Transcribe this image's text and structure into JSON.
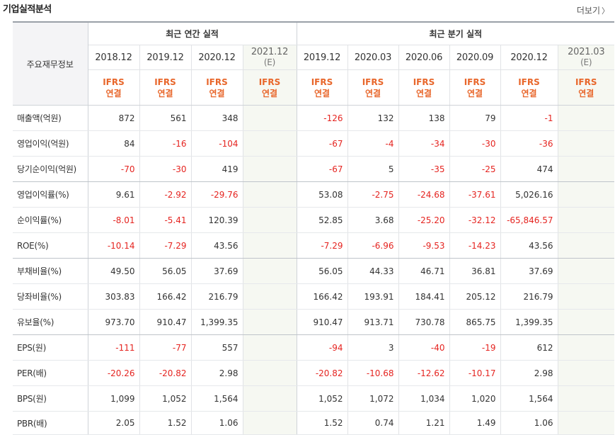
{
  "header": {
    "title": "기업실적분석",
    "more_label": "더보기",
    "more_icon": "chevron-right-icon"
  },
  "table": {
    "row_header_title": "주요재무정보",
    "groups": {
      "annual": "최근 연간 실적",
      "quarterly": "최근 분기 실적"
    },
    "annual_periods": [
      {
        "label": "2018.12",
        "estimate": false
      },
      {
        "label": "2019.12",
        "estimate": false
      },
      {
        "label": "2020.12",
        "estimate": false
      },
      {
        "label": "2021.12",
        "estimate": true,
        "estimate_mark": "(E)"
      }
    ],
    "quarter_periods": [
      {
        "label": "2019.12",
        "estimate": false
      },
      {
        "label": "2020.03",
        "estimate": false
      },
      {
        "label": "2020.06",
        "estimate": false
      },
      {
        "label": "2020.09",
        "estimate": false
      },
      {
        "label": "2020.12",
        "estimate": false
      },
      {
        "label": "2021.03",
        "estimate": true,
        "estimate_mark": "(E)"
      }
    ],
    "standard_line1": "IFRS",
    "standard_line2": "연결",
    "colors": {
      "negative": "#e52420",
      "accent": "#e8662a",
      "estimate_bg": "#f6f8f2"
    },
    "rows": [
      {
        "label": "매출액(억원)",
        "annual": [
          "872",
          "561",
          "348",
          ""
        ],
        "quarterly": [
          "-126",
          "132",
          "138",
          "79",
          "-1",
          ""
        ]
      },
      {
        "label": "영업이익(억원)",
        "annual": [
          "84",
          "-16",
          "-104",
          ""
        ],
        "quarterly": [
          "-67",
          "-4",
          "-34",
          "-30",
          "-36",
          ""
        ]
      },
      {
        "label": "당기순이익(억원)",
        "annual": [
          "-70",
          "-30",
          "419",
          ""
        ],
        "quarterly": [
          "-67",
          "5",
          "-35",
          "-25",
          "474",
          ""
        ]
      },
      {
        "label": "영업이익률(%)",
        "annual": [
          "9.61",
          "-2.92",
          "-29.76",
          ""
        ],
        "quarterly": [
          "53.08",
          "-2.75",
          "-24.68",
          "-37.61",
          "5,026.16",
          ""
        ]
      },
      {
        "label": "순이익률(%)",
        "annual": [
          "-8.01",
          "-5.41",
          "120.39",
          ""
        ],
        "quarterly": [
          "52.85",
          "3.68",
          "-25.20",
          "-32.12",
          "-65,846.57",
          ""
        ]
      },
      {
        "label": "ROE(%)",
        "annual": [
          "-10.14",
          "-7.29",
          "43.56",
          ""
        ],
        "quarterly": [
          "-7.29",
          "-6.96",
          "-9.53",
          "-14.23",
          "43.56",
          ""
        ]
      },
      {
        "label": "부채비율(%)",
        "annual": [
          "49.50",
          "56.05",
          "37.69",
          ""
        ],
        "quarterly": [
          "56.05",
          "44.33",
          "46.71",
          "36.81",
          "37.69",
          ""
        ]
      },
      {
        "label": "당좌비율(%)",
        "annual": [
          "303.83",
          "166.42",
          "216.79",
          ""
        ],
        "quarterly": [
          "166.42",
          "193.91",
          "184.41",
          "205.12",
          "216.79",
          ""
        ]
      },
      {
        "label": "유보율(%)",
        "annual": [
          "973.70",
          "910.47",
          "1,399.35",
          ""
        ],
        "quarterly": [
          "910.47",
          "913.71",
          "730.78",
          "865.75",
          "1,399.35",
          ""
        ]
      },
      {
        "label": "EPS(원)",
        "annual": [
          "-111",
          "-77",
          "557",
          ""
        ],
        "quarterly": [
          "-94",
          "3",
          "-40",
          "-19",
          "612",
          ""
        ]
      },
      {
        "label": "PER(배)",
        "annual": [
          "-20.26",
          "-20.82",
          "2.98",
          ""
        ],
        "quarterly": [
          "-20.82",
          "-10.68",
          "-12.62",
          "-10.17",
          "2.98",
          ""
        ]
      },
      {
        "label": "BPS(원)",
        "annual": [
          "1,099",
          "1,052",
          "1,564",
          ""
        ],
        "quarterly": [
          "1,052",
          "1,072",
          "1,034",
          "1,020",
          "1,564",
          ""
        ]
      },
      {
        "label": "PBR(배)",
        "annual": [
          "2.05",
          "1.52",
          "1.06",
          ""
        ],
        "quarterly": [
          "1.52",
          "0.74",
          "1.21",
          "1.49",
          "1.06",
          ""
        ]
      }
    ]
  }
}
